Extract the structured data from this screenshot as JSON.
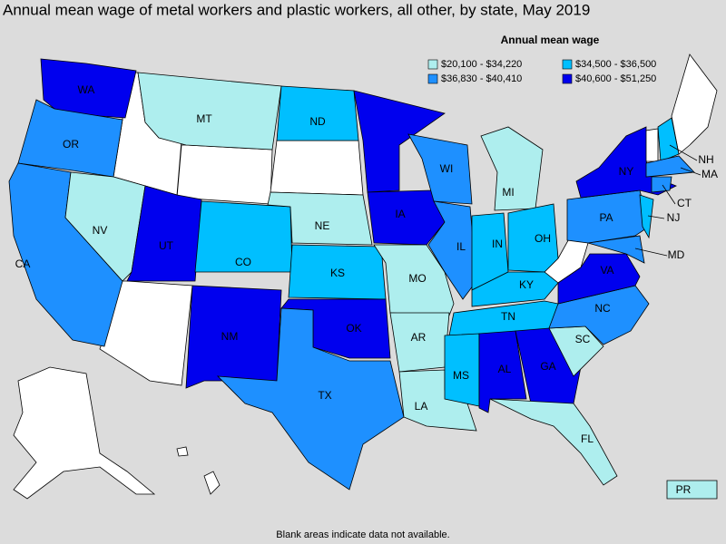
{
  "title": "Annual mean wage of metal workers and plastic workers, all other, by state, May 2019",
  "legend": {
    "title": "Annual mean wage",
    "items": [
      {
        "label": "$20,100 - $34,220",
        "color": "#aeeeee"
      },
      {
        "label": "$34,500 - $36,500",
        "color": "#00bfff"
      },
      {
        "label": "$36,830 - $40,410",
        "color": "#1e90ff"
      },
      {
        "label": "$40,600 - $51,250",
        "color": "#0000ee"
      }
    ]
  },
  "states": [
    {
      "label": "WA",
      "bin": 3
    },
    {
      "label": "OR",
      "bin": 2
    },
    {
      "label": "CA",
      "bin": 2
    },
    {
      "label": "NV",
      "bin": 0
    },
    {
      "label": "UT",
      "bin": 3
    },
    {
      "label": "MT",
      "bin": 0
    },
    {
      "label": "CO",
      "bin": 1
    },
    {
      "label": "NM",
      "bin": 3
    },
    {
      "label": "ND",
      "bin": 1
    },
    {
      "label": "NE",
      "bin": 0
    },
    {
      "label": "KS",
      "bin": 1
    },
    {
      "label": "OK",
      "bin": 3
    },
    {
      "label": "TX",
      "bin": 2
    },
    {
      "label": "MN",
      "bin": 3
    },
    {
      "label": "IA",
      "bin": 3
    },
    {
      "label": "MO",
      "bin": 0
    },
    {
      "label": "AR",
      "bin": 0
    },
    {
      "label": "LA",
      "bin": 0
    },
    {
      "label": "WI",
      "bin": 2
    },
    {
      "label": "IL",
      "bin": 2
    },
    {
      "label": "MI",
      "bin": 0
    },
    {
      "label": "IN",
      "bin": 1
    },
    {
      "label": "OH",
      "bin": 1
    },
    {
      "label": "KY",
      "bin": 1
    },
    {
      "label": "TN",
      "bin": 1
    },
    {
      "label": "MS",
      "bin": 1
    },
    {
      "label": "AL",
      "bin": 3
    },
    {
      "label": "GA",
      "bin": 3
    },
    {
      "label": "FL",
      "bin": 0
    },
    {
      "label": "SC",
      "bin": 0
    },
    {
      "label": "NC",
      "bin": 2
    },
    {
      "label": "VA",
      "bin": 3
    },
    {
      "label": "MD",
      "bin": 2
    },
    {
      "label": "PA",
      "bin": 2
    },
    {
      "label": "NJ",
      "bin": 1
    },
    {
      "label": "NY",
      "bin": 3
    },
    {
      "label": "NH",
      "bin": 1
    },
    {
      "label": "MA",
      "bin": 2
    },
    {
      "label": "CT",
      "bin": 2
    },
    {
      "label": "PR",
      "bin": 0
    }
  ],
  "note": "Blank areas indicate data not available."
}
